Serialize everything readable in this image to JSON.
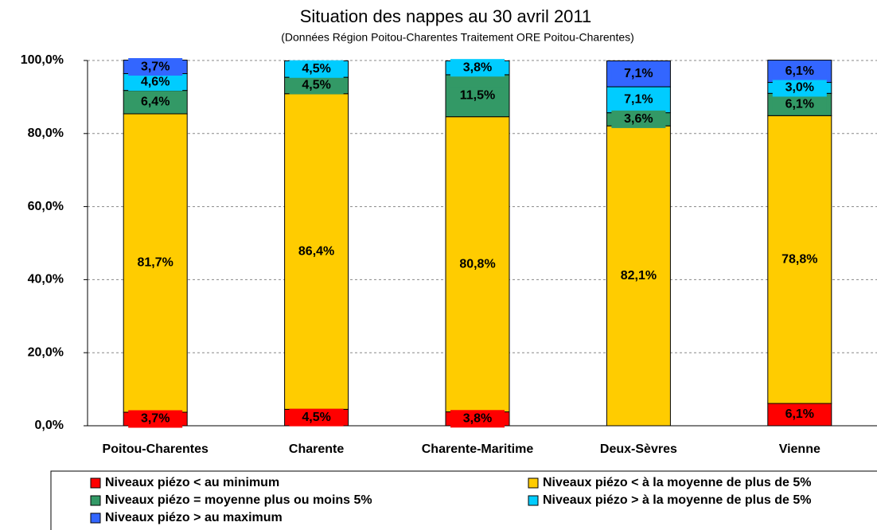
{
  "chart_data": {
    "type": "stacked_bar",
    "title": "Situation des nappes au 30 avril 2011",
    "subtitle": "(Données Région Poitou-Charentes Traitement ORE Poitou-Charentes)",
    "categories": [
      "Poitou-Charentes",
      "Charente",
      "Charente-Maritime",
      "Deux-Sèvres",
      "Vienne"
    ],
    "series": [
      {
        "name": "Niveaux piézo < au minimum",
        "color": "#ff0000",
        "values": [
          3.7,
          4.5,
          3.8,
          0,
          6.1
        ],
        "value_labels": [
          "3,7%",
          "4,5%",
          "3,8%",
          null,
          "6,1%"
        ]
      },
      {
        "name": "Niveaux piézo < à la moyenne de plus de 5%",
        "color": "#ffcc00",
        "values": [
          81.7,
          86.4,
          80.8,
          82.1,
          78.8
        ],
        "value_labels": [
          "81,7%",
          "86,4%",
          "80,8%",
          "82,1%",
          "78,8%"
        ]
      },
      {
        "name": "Niveaux piézo = moyenne plus ou moins 5%",
        "color": "#339966",
        "values": [
          6.4,
          4.5,
          11.5,
          3.6,
          6.1
        ],
        "value_labels": [
          "6,4%",
          "4,5%",
          "11,5%",
          "3,6%",
          "6,1%"
        ]
      },
      {
        "name": "Niveaux piézo > à la moyenne de plus de 5%",
        "color": "#00ccff",
        "values": [
          4.6,
          4.5,
          3.8,
          7.1,
          3.0
        ],
        "value_labels": [
          "4,6%",
          "4,5%",
          "3,8%",
          "7,1%",
          "3,0%"
        ]
      },
      {
        "name": "Niveaux piézo > au maximum",
        "color": "#3366ff",
        "values": [
          3.7,
          0,
          0,
          7.1,
          6.1
        ],
        "value_labels": [
          "3,7%",
          null,
          null,
          "7,1%",
          "6,1%"
        ]
      }
    ],
    "ylim": [
      0,
      100
    ],
    "yticks": [
      {
        "value": 0,
        "label": "0,0%"
      },
      {
        "value": 20,
        "label": "20,0%"
      },
      {
        "value": 40,
        "label": "40,0%"
      },
      {
        "value": 60,
        "label": "60,0%"
      },
      {
        "value": 80,
        "label": "80,0%"
      },
      {
        "value": 100,
        "label": "100,0%"
      }
    ],
    "grid": true
  }
}
